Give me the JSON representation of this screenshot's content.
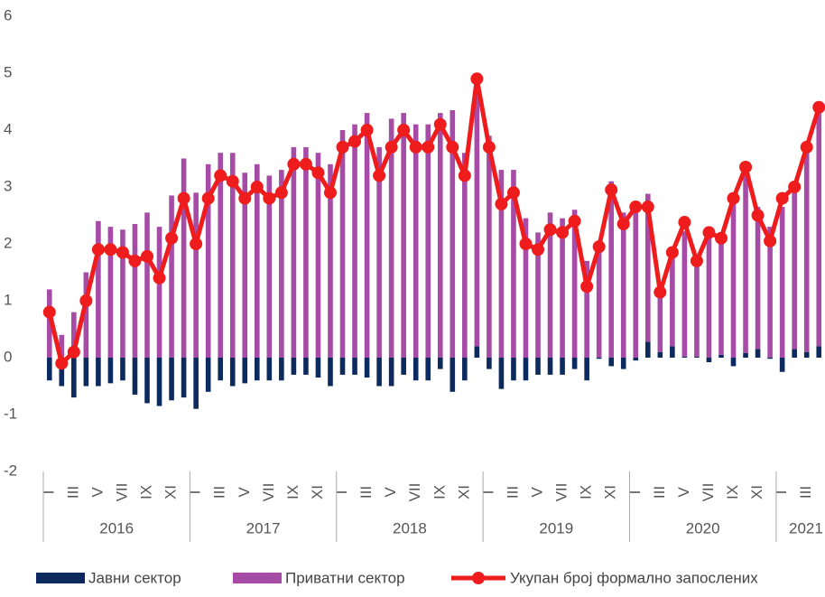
{
  "chart_data": {
    "type": "bar-line",
    "categories": [
      "I",
      null,
      "III",
      null,
      "V",
      null,
      "VII",
      null,
      "IX",
      null,
      "XI",
      null,
      "I",
      null,
      "III",
      null,
      "V",
      null,
      "VII",
      null,
      "IX",
      null,
      "XI",
      null,
      "I",
      null,
      "III",
      null,
      "V",
      null,
      "VII",
      null,
      "IX",
      null,
      "XI",
      null,
      "I",
      null,
      "III",
      null,
      "V",
      null,
      "VII",
      null,
      "IX",
      null,
      "XI",
      null,
      "I",
      null,
      "III",
      null,
      "V",
      null,
      "VII",
      null,
      "IX",
      null,
      "XI",
      null,
      "I",
      null,
      "III",
      null
    ],
    "years": [
      "2016",
      "2017",
      "2018",
      "2019",
      "2020",
      "2021"
    ],
    "series": [
      {
        "name": "Јавни сектор",
        "color": "#0d2a5e",
        "kind": "bar",
        "values": [
          -0.4,
          -0.5,
          -0.7,
          -0.5,
          -0.5,
          -0.45,
          -0.4,
          -0.65,
          -0.8,
          -0.85,
          -0.75,
          -0.7,
          -0.9,
          -0.6,
          -0.4,
          -0.5,
          -0.45,
          -0.4,
          -0.4,
          -0.4,
          -0.3,
          -0.3,
          -0.35,
          -0.5,
          -0.3,
          -0.3,
          -0.35,
          -0.5,
          -0.5,
          -0.3,
          -0.4,
          -0.4,
          -0.2,
          -0.6,
          -0.4,
          0.2,
          -0.2,
          -0.55,
          -0.4,
          -0.4,
          -0.3,
          -0.3,
          -0.3,
          -0.2,
          -0.4,
          -0.02,
          -0.15,
          -0.2,
          -0.05,
          0.28,
          0.1,
          0.2,
          0.02,
          0.02,
          -0.08,
          0.05,
          -0.15,
          0.08,
          0.15,
          -0.02,
          -0.25,
          0.15,
          0.1,
          0.2
        ]
      },
      {
        "name": "Приватни сектор",
        "color": "#a64ca6",
        "kind": "bar",
        "values": [
          1.2,
          0.4,
          0.8,
          1.5,
          2.4,
          2.3,
          2.25,
          2.35,
          2.55,
          2.3,
          2.85,
          3.5,
          2.9,
          3.4,
          3.6,
          3.6,
          3.25,
          3.4,
          3.2,
          3.3,
          3.7,
          3.7,
          3.6,
          3.4,
          4.0,
          4.1,
          4.3,
          3.7,
          4.2,
          4.3,
          4.1,
          4.1,
          4.3,
          4.35,
          3.6,
          4.7,
          3.9,
          3.3,
          3.3,
          2.45,
          2.2,
          2.55,
          2.45,
          2.6,
          1.7,
          2.0,
          3.1,
          2.55,
          2.6,
          2.6,
          1.0,
          1.7,
          2.2,
          1.7,
          2.15,
          2.1,
          2.75,
          3.2,
          2.5,
          2.3,
          2.65,
          2.9,
          3.6,
          4.2
        ]
      },
      {
        "name": "Укупан број формално запослених",
        "color": "#ee1c1c",
        "kind": "line",
        "values": [
          0.8,
          -0.1,
          0.1,
          1.0,
          1.9,
          1.9,
          1.85,
          1.7,
          1.78,
          1.4,
          2.1,
          2.8,
          2.0,
          2.8,
          3.2,
          3.1,
          2.8,
          3.0,
          2.8,
          2.9,
          3.4,
          3.4,
          3.25,
          2.9,
          3.7,
          3.8,
          4.0,
          3.2,
          3.7,
          4.0,
          3.7,
          3.7,
          4.1,
          3.7,
          3.2,
          4.9,
          3.7,
          2.7,
          2.9,
          2.0,
          1.9,
          2.25,
          2.2,
          2.4,
          1.25,
          1.95,
          2.95,
          2.35,
          2.65,
          2.65,
          1.15,
          1.85,
          2.38,
          1.7,
          2.2,
          2.1,
          2.8,
          3.35,
          2.5,
          2.05,
          2.8,
          3.0,
          3.7,
          4.4
        ]
      }
    ],
    "ylim": [
      -2,
      6
    ],
    "yticks": [
      -2,
      -1,
      0,
      1,
      2,
      3,
      4,
      5,
      6
    ]
  }
}
